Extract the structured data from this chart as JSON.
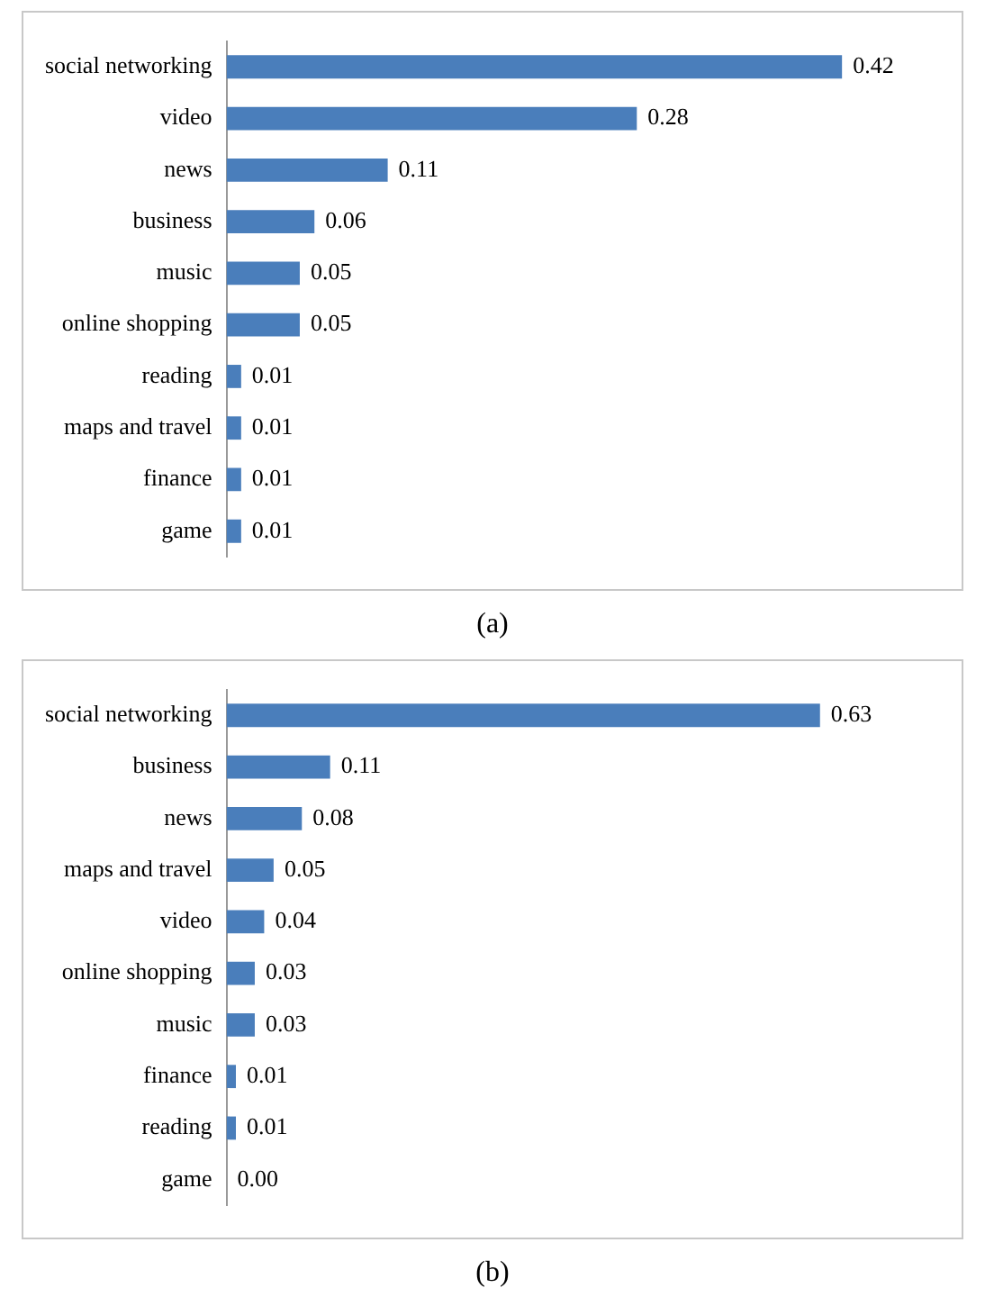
{
  "chart_data": [
    {
      "type": "bar",
      "orientation": "horizontal",
      "categories": [
        "social networking",
        "video",
        "news",
        "business",
        "music",
        "online shopping",
        "reading",
        "maps and travel",
        "finance",
        "game"
      ],
      "values": [
        0.42,
        0.28,
        0.11,
        0.06,
        0.05,
        0.05,
        0.01,
        0.01,
        0.01,
        0.01
      ],
      "value_labels": [
        "0.42",
        "0.28",
        "0.11",
        "0.06",
        "0.05",
        "0.05",
        "0.01",
        "0.01",
        "0.01",
        "0.01"
      ],
      "color": "#4a7ebb",
      "grid": false,
      "legend": false,
      "tick_labels": "y",
      "annotations": [
        "(a)"
      ]
    },
    {
      "type": "bar",
      "orientation": "horizontal",
      "categories": [
        "social networking",
        "business",
        "news",
        "maps and travel",
        "video",
        "online shopping",
        "music",
        "finance",
        "reading",
        "game"
      ],
      "values": [
        0.63,
        0.11,
        0.08,
        0.05,
        0.04,
        0.03,
        0.03,
        0.01,
        0.01,
        0.0
      ],
      "value_labels": [
        "0.63",
        "0.11",
        "0.08",
        "0.05",
        "0.04",
        "0.03",
        "0.03",
        "0.01",
        "0.01",
        "0.00"
      ],
      "color": "#4a7ebb",
      "grid": false,
      "legend": false,
      "tick_labels": "y",
      "annotations": [
        "(b)"
      ]
    }
  ]
}
